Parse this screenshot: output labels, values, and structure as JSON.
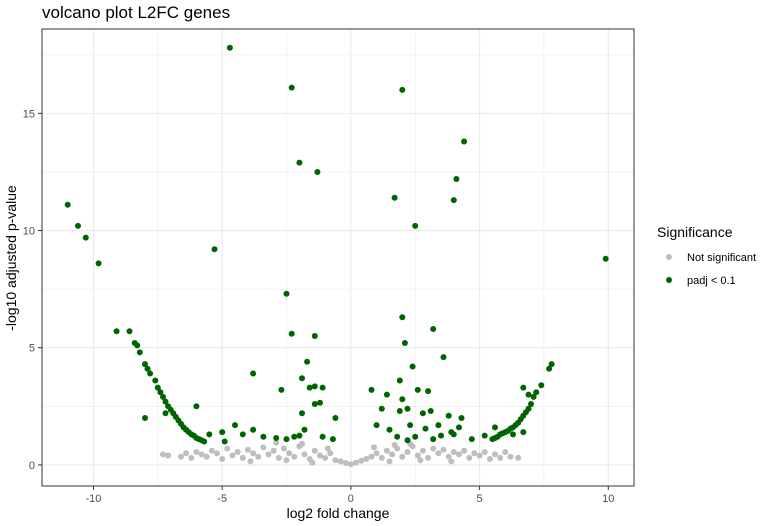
{
  "chart_data": {
    "type": "scatter",
    "title": "volcano plot L2FC genes",
    "xlabel": "log2 fold change",
    "ylabel": "-log10 adjusted p-value",
    "xlim": [
      -12,
      11
    ],
    "ylim": [
      -0.9,
      18.6
    ],
    "x_ticks": [
      -10,
      -5,
      0,
      5,
      10
    ],
    "y_ticks": [
      0,
      5,
      10,
      15
    ],
    "x_tick_labels": [
      "-10",
      "-5",
      "0",
      "5",
      "10"
    ],
    "y_tick_labels": [
      "0",
      "5",
      "10",
      "15"
    ],
    "grid": true,
    "legend": {
      "title": "Significance",
      "position": "right",
      "entries": [
        {
          "label": "Not significant",
          "color": "#bebebe"
        },
        {
          "label": "padj < 0.1",
          "color": "#006400"
        }
      ]
    },
    "series": [
      {
        "name": "Not significant",
        "color": "#bebebe",
        "points": [
          [
            -7.3,
            0.45
          ],
          [
            -7.1,
            0.4
          ],
          [
            -6.6,
            0.35
          ],
          [
            -6.4,
            0.5
          ],
          [
            -6.2,
            0.3
          ],
          [
            -6.0,
            0.55
          ],
          [
            -5.8,
            0.45
          ],
          [
            -5.6,
            0.35
          ],
          [
            -5.4,
            0.6
          ],
          [
            -5.2,
            0.5
          ],
          [
            -5.0,
            0.25
          ],
          [
            -4.8,
            0.7
          ],
          [
            -4.6,
            0.4
          ],
          [
            -4.4,
            0.55
          ],
          [
            -4.2,
            0.3
          ],
          [
            -4.0,
            0.65
          ],
          [
            -3.8,
            0.5
          ],
          [
            -3.6,
            0.35
          ],
          [
            -3.4,
            0.75
          ],
          [
            -3.2,
            0.45
          ],
          [
            -3.0,
            0.6
          ],
          [
            -2.8,
            0.3
          ],
          [
            -2.6,
            0.7
          ],
          [
            -2.4,
            0.5
          ],
          [
            -2.2,
            0.35
          ],
          [
            -2.0,
            0.8
          ],
          [
            -1.8,
            0.45
          ],
          [
            -1.6,
            0.25
          ],
          [
            -1.4,
            0.6
          ],
          [
            -1.2,
            0.4
          ],
          [
            -1.0,
            0.3
          ],
          [
            -0.8,
            0.5
          ],
          [
            -0.6,
            0.2
          ],
          [
            -0.4,
            0.15
          ],
          [
            -0.2,
            0.08
          ],
          [
            0.0,
            0.03
          ],
          [
            0.2,
            0.1
          ],
          [
            0.4,
            0.18
          ],
          [
            0.6,
            0.25
          ],
          [
            0.8,
            0.35
          ],
          [
            1.0,
            0.5
          ],
          [
            1.2,
            0.3
          ],
          [
            1.4,
            0.6
          ],
          [
            1.6,
            0.45
          ],
          [
            1.8,
            0.7
          ],
          [
            2.0,
            0.35
          ],
          [
            2.2,
            0.55
          ],
          [
            2.4,
            0.8
          ],
          [
            2.6,
            0.4
          ],
          [
            2.8,
            0.6
          ],
          [
            3.0,
            0.3
          ],
          [
            3.2,
            0.7
          ],
          [
            3.4,
            0.5
          ],
          [
            3.6,
            0.65
          ],
          [
            3.8,
            0.35
          ],
          [
            4.0,
            0.55
          ],
          [
            4.2,
            0.45
          ],
          [
            4.4,
            0.6
          ],
          [
            4.6,
            0.3
          ],
          [
            4.8,
            0.5
          ],
          [
            5.0,
            0.4
          ],
          [
            5.2,
            0.55
          ],
          [
            5.4,
            0.25
          ],
          [
            5.6,
            0.45
          ],
          [
            5.8,
            0.3
          ],
          [
            6.0,
            0.55
          ],
          [
            6.2,
            0.35
          ],
          [
            6.5,
            0.3
          ],
          [
            -3.9,
            0.15
          ],
          [
            -2.5,
            0.2
          ],
          [
            -1.5,
            0.1
          ],
          [
            1.5,
            0.15
          ],
          [
            2.7,
            0.2
          ],
          [
            3.9,
            0.15
          ],
          [
            -0.9,
            0.7
          ],
          [
            0.9,
            0.75
          ],
          [
            -2.9,
            0.95
          ],
          [
            2.3,
            0.9
          ],
          [
            1.7,
            0.85
          ],
          [
            -1.9,
            0.9
          ]
        ]
      },
      {
        "name": "padj < 0.1",
        "color": "#006400",
        "points": [
          [
            -4.7,
            17.8
          ],
          [
            -2.3,
            16.1
          ],
          [
            -2.0,
            12.9
          ],
          [
            -1.3,
            12.5
          ],
          [
            -5.3,
            9.2
          ],
          [
            -2.5,
            7.3
          ],
          [
            -2.3,
            5.6
          ],
          [
            -1.4,
            5.5
          ],
          [
            -3.8,
            3.9
          ],
          [
            -1.7,
            4.4
          ],
          [
            -1.9,
            3.7
          ],
          [
            -2.7,
            3.2
          ],
          [
            -1.6,
            3.3
          ],
          [
            -1.4,
            3.35
          ],
          [
            -1.1,
            3.3
          ],
          [
            -1.4,
            2.6
          ],
          [
            -1.2,
            2.65
          ],
          [
            -1.9,
            2.2
          ],
          [
            -0.6,
            2.0
          ],
          [
            -1.8,
            1.5
          ],
          [
            -4.5,
            1.7
          ],
          [
            -3.8,
            1.5
          ],
          [
            -4.2,
            1.3
          ],
          [
            -3.4,
            1.2
          ],
          [
            -2.5,
            1.1
          ],
          [
            -2.2,
            1.2
          ],
          [
            -1.1,
            1.2
          ],
          [
            -0.7,
            1.1
          ],
          [
            -2.9,
            1.15
          ],
          [
            -2.0,
            1.25
          ],
          [
            -11.0,
            11.1
          ],
          [
            -10.6,
            10.2
          ],
          [
            -10.3,
            9.7
          ],
          [
            -9.8,
            8.6
          ],
          [
            -9.1,
            5.7
          ],
          [
            -8.6,
            5.7
          ],
          [
            -8.4,
            5.2
          ],
          [
            -8.3,
            5.1
          ],
          [
            -8.2,
            4.8
          ],
          [
            -8.0,
            4.3
          ],
          [
            -7.9,
            4.1
          ],
          [
            -7.8,
            3.9
          ],
          [
            -7.6,
            3.6
          ],
          [
            -7.5,
            3.3
          ],
          [
            -7.4,
            3.1
          ],
          [
            -7.3,
            2.9
          ],
          [
            -7.2,
            2.7
          ],
          [
            -7.1,
            2.5
          ],
          [
            -7.0,
            2.35
          ],
          [
            -6.9,
            2.2
          ],
          [
            -6.8,
            2.05
          ],
          [
            -6.7,
            1.9
          ],
          [
            -6.6,
            1.75
          ],
          [
            -6.5,
            1.6
          ],
          [
            -6.4,
            1.5
          ],
          [
            -6.3,
            1.4
          ],
          [
            -6.2,
            1.3
          ],
          [
            -6.1,
            1.25
          ],
          [
            -6.0,
            1.15
          ],
          [
            -5.9,
            1.1
          ],
          [
            -5.8,
            1.05
          ],
          [
            -5.7,
            1.0
          ],
          [
            -8.0,
            2.0
          ],
          [
            -7.2,
            2.2
          ],
          [
            -6.0,
            2.5
          ],
          [
            -5.0,
            1.4
          ],
          [
            -5.5,
            1.3
          ],
          [
            -4.9,
            1.0
          ],
          [
            2.0,
            16.0
          ],
          [
            4.4,
            13.8
          ],
          [
            4.1,
            12.2
          ],
          [
            1.7,
            11.4
          ],
          [
            4.0,
            11.3
          ],
          [
            2.5,
            10.2
          ],
          [
            9.9,
            8.8
          ],
          [
            2.0,
            6.3
          ],
          [
            3.2,
            5.8
          ],
          [
            2.1,
            5.2
          ],
          [
            3.6,
            4.6
          ],
          [
            2.4,
            4.2
          ],
          [
            1.9,
            3.6
          ],
          [
            0.8,
            3.2
          ],
          [
            1.4,
            3.0
          ],
          [
            2.6,
            3.2
          ],
          [
            3.0,
            3.15
          ],
          [
            2.0,
            2.8
          ],
          [
            1.2,
            2.4
          ],
          [
            2.2,
            2.4
          ],
          [
            3.1,
            2.3
          ],
          [
            2.8,
            2.2
          ],
          [
            3.8,
            2.1
          ],
          [
            4.3,
            2.0
          ],
          [
            1.9,
            2.3
          ],
          [
            1.0,
            1.7
          ],
          [
            1.5,
            1.5
          ],
          [
            2.3,
            1.7
          ],
          [
            2.9,
            1.55
          ],
          [
            3.4,
            1.7
          ],
          [
            3.9,
            1.4
          ],
          [
            4.2,
            1.6
          ],
          [
            1.8,
            1.2
          ],
          [
            2.5,
            1.2
          ],
          [
            3.5,
            1.25
          ],
          [
            4.0,
            1.3
          ],
          [
            4.7,
            1.1
          ],
          [
            5.2,
            1.25
          ],
          [
            2.2,
            1.05
          ],
          [
            3.2,
            1.1
          ],
          [
            5.5,
            1.1
          ],
          [
            5.6,
            1.15
          ],
          [
            5.7,
            1.2
          ],
          [
            5.8,
            1.3
          ],
          [
            5.9,
            1.35
          ],
          [
            6.0,
            1.4
          ],
          [
            6.1,
            1.45
          ],
          [
            6.2,
            1.55
          ],
          [
            6.3,
            1.6
          ],
          [
            6.4,
            1.7
          ],
          [
            6.5,
            1.8
          ],
          [
            6.6,
            1.95
          ],
          [
            6.7,
            2.1
          ],
          [
            6.8,
            2.25
          ],
          [
            6.9,
            2.4
          ],
          [
            7.0,
            2.6
          ],
          [
            7.1,
            2.9
          ],
          [
            7.2,
            3.1
          ],
          [
            7.4,
            3.4
          ],
          [
            7.7,
            4.1
          ],
          [
            7.8,
            4.3
          ],
          [
            6.7,
            3.3
          ],
          [
            6.9,
            3.0
          ],
          [
            6.7,
            1.4
          ],
          [
            5.6,
            1.6
          ],
          [
            6.3,
            1.3
          ]
        ]
      }
    ]
  }
}
